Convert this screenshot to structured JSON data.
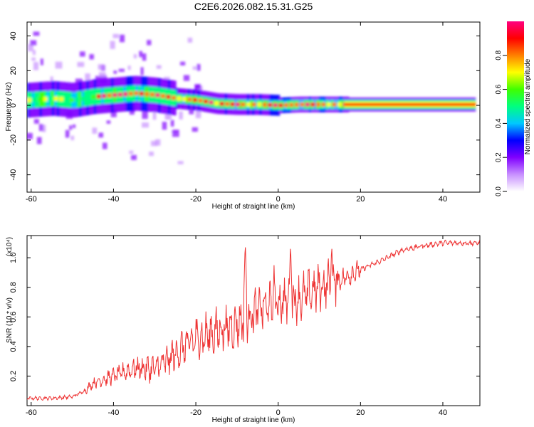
{
  "title": "C2E6.2026.082.15.31.G25",
  "chart_data": [
    {
      "type": "heatmap",
      "xlabel": "Height of straight line (km)",
      "ylabel": "Frequency (Hz)",
      "xlim": [
        -61,
        49
      ],
      "ylim": [
        -50,
        48
      ],
      "xticks": [
        -60,
        -40,
        -20,
        0,
        20,
        40
      ],
      "yticks": [
        -40,
        -20,
        0,
        20,
        40
      ],
      "colorbar": {
        "label": "Normalized spectral amplitude",
        "range": [
          0,
          1
        ],
        "ticks": [
          "0.0",
          "0.2",
          "0.4",
          "0.6",
          "0.8"
        ],
        "colors": [
          "#ffffff",
          "#c890ff",
          "#8000ff",
          "#0000ff",
          "#00c8ff",
          "#00ff80",
          "#40ff00",
          "#ffff00",
          "#ff8000",
          "#ff0000",
          "#ff0080"
        ]
      },
      "ridge": {
        "x": [
          -61,
          -55,
          -50,
          -45,
          -40,
          -35,
          -30,
          -25,
          -20,
          -15,
          -10,
          -5,
          0,
          5,
          10,
          15,
          17,
          49
        ],
        "y": [
          3,
          4,
          3,
          5,
          6,
          7,
          6,
          4,
          3,
          1,
          0.5,
          0.5,
          0,
          0.5,
          0.5,
          0.5,
          0.5,
          0.5
        ]
      }
    },
    {
      "type": "line",
      "xlabel": "Height of straight line (km)",
      "ylabel": "SNR (10 * v/v)",
      "scale_label": "(x10⁴)",
      "xlim": [
        -61,
        49
      ],
      "ylim": [
        0,
        1.15
      ],
      "xticks": [
        -60,
        -40,
        -20,
        0,
        20,
        40
      ],
      "yticks": [
        0.2,
        0.4,
        0.6,
        0.8,
        1.0
      ],
      "ytick_labels": [
        "0.2",
        "0.4",
        "0.6",
        "0.8",
        "1.0"
      ],
      "series": [
        {
          "name": "SNR",
          "color": "#ee3333",
          "trend_x": [
            -61,
            -55,
            -50,
            -47,
            -45,
            -40,
            -35,
            -30,
            -27,
            -25,
            -20,
            -15,
            -10,
            -5,
            0,
            5,
            10,
            15,
            20,
            25,
            30,
            35,
            40,
            45,
            49
          ],
          "trend_y": [
            0.05,
            0.05,
            0.06,
            0.1,
            0.15,
            0.2,
            0.25,
            0.25,
            0.3,
            0.35,
            0.45,
            0.5,
            0.55,
            0.65,
            0.7,
            0.72,
            0.8,
            0.85,
            0.92,
            0.98,
            1.05,
            1.08,
            1.1,
            1.1,
            1.1
          ],
          "peak_x": [
            -8,
            -1,
            3,
            13
          ],
          "peak_y": [
            1.11,
            0.95,
            1.1,
            1.1
          ]
        }
      ]
    }
  ]
}
